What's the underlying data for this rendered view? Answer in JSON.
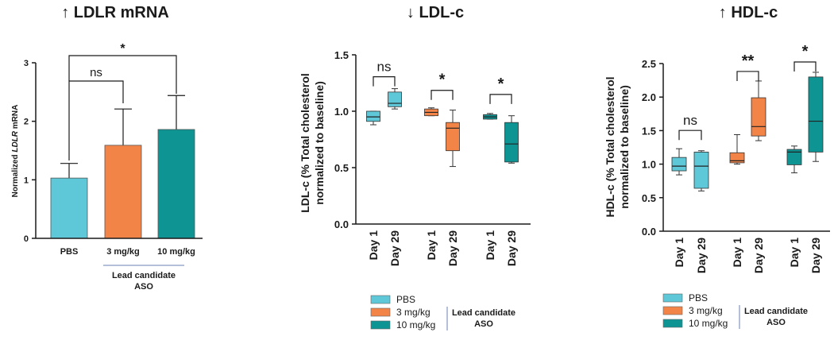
{
  "colors": {
    "PBS": "#5ec8d8",
    "3 mg/kg": "#f28448",
    "10 mg/kg": "#0f9494"
  },
  "chart_data": [
    {
      "type": "bar",
      "title": "↑ LDLR mRNA",
      "ylabel_pre": "Normalized ",
      "ylabel_em": "LDLR",
      "ylabel_post": " mRNA",
      "ylim": [
        0,
        3
      ],
      "yticks": [
        "0",
        "1",
        "2",
        "3"
      ],
      "categories": [
        "PBS",
        "3 mg/kg",
        "10 mg/kg"
      ],
      "values": [
        1.03,
        1.59,
        1.86
      ],
      "errors": [
        0.25,
        0.62,
        0.58
      ],
      "group_label": [
        "Lead candidate",
        "ASO"
      ],
      "significance": [
        {
          "pair": [
            "PBS",
            "3 mg/kg"
          ],
          "label": "ns"
        },
        {
          "pair": [
            "PBS",
            "10 mg/kg"
          ],
          "label": "*"
        }
      ]
    },
    {
      "type": "box",
      "title": "↓ LDL-c",
      "ylabel": [
        "LDL-c (% Total cholesterol",
        "normalized to baseline)"
      ],
      "ylim": [
        0,
        1.5
      ],
      "yticks": [
        "0.0",
        "0.5",
        "1.0",
        "1.5"
      ],
      "xticks": [
        "Day 1",
        "Day 29",
        "Day 1",
        "Day 29",
        "Day 1",
        "Day 29"
      ],
      "series": [
        {
          "name": "PBS",
          "day1": {
            "min": 0.88,
            "q1": 0.91,
            "median": 0.95,
            "q3": 1.0,
            "max": 1.0
          },
          "day29": {
            "min": 1.02,
            "q1": 1.04,
            "median": 1.07,
            "q3": 1.17,
            "max": 1.2
          },
          "sig": "ns"
        },
        {
          "name": "3 mg/kg",
          "day1": {
            "min": 0.96,
            "q1": 0.96,
            "median": 0.99,
            "q3": 1.02,
            "max": 1.03
          },
          "day29": {
            "min": 0.51,
            "q1": 0.65,
            "median": 0.85,
            "q3": 0.9,
            "max": 1.01
          },
          "sig": "*"
        },
        {
          "name": "10 mg/kg",
          "day1": {
            "min": 0.93,
            "q1": 0.93,
            "median": 0.95,
            "q3": 0.97,
            "max": 0.98
          },
          "day29": {
            "min": 0.54,
            "q1": 0.55,
            "median": 0.71,
            "q3": 0.9,
            "max": 0.96
          },
          "sig": "*"
        }
      ]
    },
    {
      "type": "box",
      "title": "↑ HDL-c",
      "ylabel": [
        "HDL-c (% Total cholesterol",
        "normalized to baseline)"
      ],
      "ylim": [
        0,
        2.5
      ],
      "yticks": [
        "0.0",
        "0.5",
        "1.0",
        "1.5",
        "2.0",
        "2.5"
      ],
      "xticks": [
        "Day 1",
        "Day 29",
        "Day 1",
        "Day 29",
        "Day 1",
        "Day 29"
      ],
      "series": [
        {
          "name": "PBS",
          "day1": {
            "min": 0.84,
            "q1": 0.9,
            "median": 0.97,
            "q3": 1.1,
            "max": 1.23
          },
          "day29": {
            "min": 0.6,
            "q1": 0.64,
            "median": 0.97,
            "q3": 1.18,
            "max": 1.2
          },
          "sig": "ns"
        },
        {
          "name": "3 mg/kg",
          "day1": {
            "min": 1.0,
            "q1": 1.02,
            "median": 1.05,
            "q3": 1.17,
            "max": 1.44
          },
          "day29": {
            "min": 1.35,
            "q1": 1.42,
            "median": 1.56,
            "q3": 1.99,
            "max": 2.24
          },
          "sig": "**"
        },
        {
          "name": "10 mg/kg",
          "day1": {
            "min": 0.87,
            "q1": 0.99,
            "median": 1.18,
            "q3": 1.22,
            "max": 1.27
          },
          "day29": {
            "min": 1.04,
            "q1": 1.18,
            "median": 1.64,
            "q3": 2.3,
            "max": 2.37
          },
          "sig": "*"
        }
      ]
    }
  ],
  "legend": {
    "items": [
      "PBS",
      "3 mg/kg",
      "10 mg/kg"
    ],
    "group_label": [
      "Lead candidate",
      "ASO"
    ]
  }
}
